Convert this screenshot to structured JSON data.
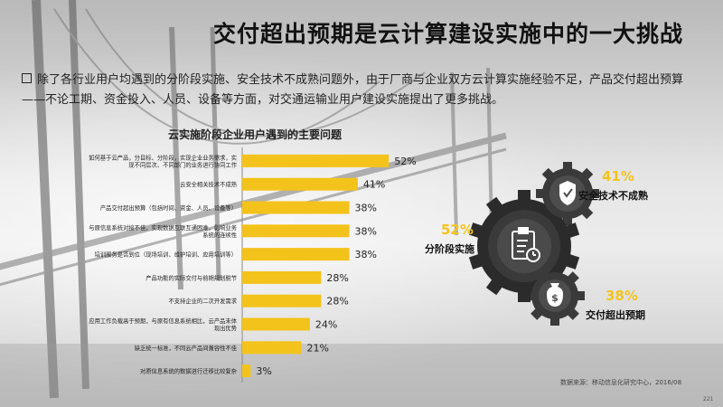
{
  "header": {
    "title": "交付超出预期是云计算建设实施中的一大挑战"
  },
  "description": "除了各行业用户均遇到的分阶段实施、安全技术不成熟问题外，由于厂商与企业双方云计算实施经验不足，产品交付超出预算——不论工期、资金投入、人员、设备等方面，对交通运输业用户建设实施提出了更多挑战。",
  "chart_data": {
    "type": "bar",
    "orientation": "horizontal",
    "title": "云实施阶段企业用户遇到的主要问题",
    "categories": [
      "如何基于云产品，分目标、分阶段，实现企业业务需求，实现不同层次、不同部门的业务进行协同工作",
      "云安全相关技术不成熟",
      "产品交付超出预算（包括时间、资金、人员、设备等）",
      "与原信息系统对接不佳，实现数据互联互通困难，影响业务系统的连续性",
      "培训服务是否到位（现场培训、维护培训、应用培训等）",
      "产品功能的实际交付与前期规划脱节",
      "不支持企业的二次开发需求",
      "应用工作负载高于预期，与原有信息系统相比，云产品未体现出优势",
      "缺乏统一标准，不同云产品间兼容性不佳",
      "对原信息系统的数据进行迁移比较复杂"
    ],
    "values": [
      52,
      41,
      38,
      38,
      38,
      28,
      28,
      24,
      21,
      3
    ],
    "value_labels": [
      "52%",
      "41%",
      "38%",
      "38%",
      "38%",
      "28%",
      "28%",
      "24%",
      "21%",
      "3%"
    ],
    "xlim": [
      0,
      100
    ],
    "colors": {
      "bar": "#f3c31c"
    }
  },
  "stats": [
    {
      "pct": "41%",
      "label": "安全技术不成熟",
      "icon": "shield-icon"
    },
    {
      "pct": "52%",
      "label": "分阶段实施",
      "icon": "clipboard-clock-icon"
    },
    {
      "pct": "38%",
      "label": "交付超出预期",
      "icon": "money-bag-icon"
    }
  ],
  "source": "数据来源：移动信息化研究中心，2016/08",
  "page_number": "221"
}
